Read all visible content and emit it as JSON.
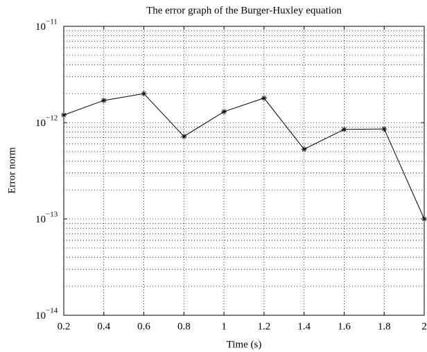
{
  "chart_data": {
    "type": "line",
    "title": "The error graph of the Burger-Huxley equation",
    "x_label": "Time (s)",
    "y_label": "Error norm",
    "x": [
      0.2,
      0.4,
      0.6,
      0.8,
      1,
      1.2,
      1.4,
      1.6,
      1.8,
      2
    ],
    "series": [
      {
        "name": "Error norm",
        "color": "#000000",
        "values": [
          1.2e-12,
          1.7e-12,
          2e-12,
          7.2e-13,
          1.3e-12,
          1.8e-12,
          5.3e-13,
          8.5e-13,
          8.6e-13,
          1e-13
        ]
      }
    ],
    "xlim": [
      0.2,
      2
    ],
    "xticks": [
      0.2,
      0.4,
      0.6,
      0.8,
      1,
      1.2,
      1.4,
      1.6,
      1.8,
      2
    ],
    "ylim": [
      1e-14,
      1e-11
    ],
    "log_y": true,
    "yticks": [
      {
        "value": 1e-14,
        "label": "10",
        "exponent": "−14"
      },
      {
        "value": 1e-13,
        "label": "10",
        "exponent": "−13"
      },
      {
        "value": 1e-12,
        "label": "10",
        "exponent": "−12"
      },
      {
        "value": 1e-11,
        "label": "10",
        "exponent": "−11"
      }
    ],
    "grid": true,
    "marker": "*"
  }
}
